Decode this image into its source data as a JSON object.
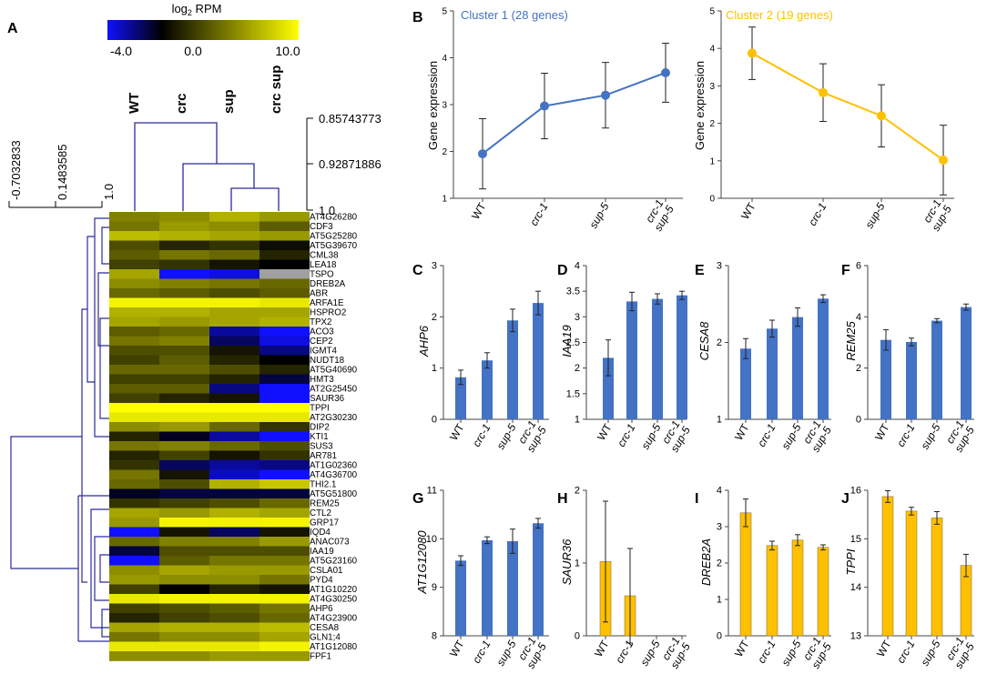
{
  "panel_letters": {
    "A": "A",
    "B": "B",
    "C": "C",
    "D": "D",
    "E": "E",
    "F": "F",
    "G": "G",
    "H": "H",
    "I": "I",
    "J": "J"
  },
  "heatmap": {
    "colorbar_title": "log",
    "colorbar_title_sub": "2",
    "colorbar_title_rest": " RPM",
    "colorbar_ticks": [
      "-4.0",
      "0.0",
      "10.0"
    ],
    "colorbar_colors": {
      "low": "#1010ff",
      "mid": "#000000",
      "high": "#ffff00"
    },
    "columns": [
      "WT",
      "crc",
      "sup",
      "crc sup"
    ],
    "col_dendro_scale": [
      "0.85743773",
      "0.92871886",
      "1.0"
    ],
    "row_dendro_scale": [
      "-0.7032833",
      "0.1483585",
      "1.0"
    ],
    "genes": [
      "AT4G26280",
      "CDF3",
      "AT5G25280",
      "AT5G39670",
      "CML38",
      "LEA18",
      "TSPO",
      "DREB2A",
      "ABR",
      "ARFA1E",
      "HSPRO2",
      "TPX2",
      "ACO3",
      "CEP2",
      "IGMT4",
      "NUDT18",
      "AT5G40690",
      "HMT3",
      "AT2G25450",
      "SAUR36",
      "TPPI",
      "AT2G30230",
      "DIP2",
      "KTI1",
      "SUS3",
      "AR781",
      "AT1G02360",
      "AT4G36700",
      "THI2.1",
      "AT5G51800",
      "REM25",
      "CTL2",
      "GRP17",
      "IQD4",
      "ANAC073",
      "IAA19",
      "AT5G23160",
      "CSLA01",
      "PYD4",
      "AT1G10220",
      "AT4G30250",
      "AHP6",
      "AT4G23900",
      "CESA8",
      "GLN1;4",
      "AT1G12080",
      "FPF1"
    ],
    "values": [
      [
        4.5,
        5.0,
        6.5,
        5.5
      ],
      [
        4.0,
        5.5,
        5.0,
        3.0
      ],
      [
        7.0,
        6.5,
        6.0,
        5.5
      ],
      [
        2.5,
        1.0,
        1.5,
        0.3
      ],
      [
        3.0,
        4.0,
        3.5,
        1.0
      ],
      [
        2.0,
        1.5,
        0.5,
        0.0
      ],
      [
        6.0,
        -4.0,
        -3.5,
        null
      ],
      [
        5.0,
        4.5,
        4.0,
        3.5
      ],
      [
        3.5,
        3.0,
        2.5,
        3.0
      ],
      [
        9.5,
        9.5,
        9.5,
        9.0
      ],
      [
        6.5,
        6.5,
        6.0,
        6.0
      ],
      [
        6.0,
        5.5,
        6.0,
        6.5
      ],
      [
        3.0,
        3.5,
        -2.5,
        -4.0
      ],
      [
        4.0,
        4.5,
        -1.5,
        -3.5
      ],
      [
        2.5,
        2.5,
        0.5,
        -2.0
      ],
      [
        2.0,
        3.0,
        1.0,
        0.0
      ],
      [
        3.5,
        3.5,
        2.5,
        1.0
      ],
      [
        2.0,
        2.0,
        1.0,
        -1.0
      ],
      [
        3.0,
        3.0,
        -2.0,
        -4.0
      ],
      [
        2.0,
        1.0,
        0.5,
        -4.0
      ],
      [
        10.0,
        10.0,
        10.0,
        10.0
      ],
      [
        9.0,
        9.0,
        9.0,
        9.0
      ],
      [
        5.0,
        5.5,
        3.5,
        1.5
      ],
      [
        1.0,
        -0.5,
        -2.5,
        -4.0
      ],
      [
        4.0,
        4.5,
        3.5,
        2.5
      ],
      [
        1.0,
        2.0,
        0.5,
        1.5
      ],
      [
        1.5,
        -1.5,
        -2.5,
        -2.0
      ],
      [
        4.0,
        0.5,
        -3.0,
        -4.0
      ],
      [
        3.5,
        2.5,
        6.5,
        7.5
      ],
      [
        -0.5,
        -1.0,
        -1.0,
        -1.0
      ],
      [
        1.5,
        2.0,
        2.5,
        3.5
      ],
      [
        6.0,
        5.5,
        6.5,
        6.0
      ],
      [
        5.5,
        9.5,
        9.5,
        9.5
      ],
      [
        -4.0,
        0.5,
        -1.5,
        0.5
      ],
      [
        3.5,
        4.5,
        4.5,
        5.5
      ],
      [
        -1.0,
        2.5,
        2.5,
        2.5
      ],
      [
        -4.0,
        3.0,
        4.0,
        4.0
      ],
      [
        5.0,
        6.0,
        5.5,
        5.5
      ],
      [
        5.5,
        5.0,
        5.0,
        4.0
      ],
      [
        2.0,
        0.0,
        1.0,
        0.5
      ],
      [
        9.0,
        9.5,
        9.5,
        9.5
      ],
      [
        2.0,
        2.5,
        3.0,
        4.0
      ],
      [
        1.0,
        2.0,
        2.5,
        3.5
      ],
      [
        6.0,
        6.5,
        6.5,
        7.0
      ],
      [
        4.0,
        5.0,
        5.0,
        6.0
      ],
      [
        9.0,
        9.0,
        9.0,
        9.5
      ],
      [
        5.0,
        5.0,
        5.5,
        5.5
      ]
    ]
  },
  "xcats": [
    "WT",
    "crc-1",
    "sup-5",
    "crc-1",
    "sup-5"
  ],
  "chart_data": [
    {
      "id": "B1",
      "type": "line",
      "title": "Cluster 1 (28 genes)",
      "ylabel": "Gene expression",
      "categories": [
        "WT",
        "crc-1",
        "sup-5",
        "crc-1 sup-5"
      ],
      "values": [
        1.95,
        2.97,
        3.2,
        3.68
      ],
      "errors": [
        0.75,
        0.7,
        0.7,
        0.63
      ],
      "ylim": [
        1,
        5
      ],
      "yticks": [
        "1",
        "2",
        "3",
        "4",
        "5"
      ],
      "color": "#4472c4"
    },
    {
      "id": "B2",
      "type": "line",
      "title": "Cluster 2 (19 genes)",
      "ylabel": "Gene expression",
      "categories": [
        "WT",
        "crc-1",
        "sup-5",
        "crc-1 sup-5"
      ],
      "values": [
        3.87,
        2.82,
        2.2,
        1.02
      ],
      "errors": [
        0.7,
        0.77,
        0.83,
        0.93
      ],
      "ylim": [
        0,
        5
      ],
      "yticks": [
        "0",
        "1",
        "2",
        "3",
        "4",
        "5"
      ],
      "color": "#ffc000"
    },
    {
      "id": "C",
      "type": "bar",
      "ylabel": "AHP6",
      "categories": [
        "WT",
        "crc-1",
        "sup-5",
        "crc-1 sup-5"
      ],
      "values": [
        0.82,
        1.15,
        1.93,
        2.27
      ],
      "errors": [
        0.14,
        0.15,
        0.22,
        0.23
      ],
      "ylim": [
        0,
        3
      ],
      "yticks": [
        "0",
        "1",
        "2",
        "3"
      ],
      "color": "#4472c4"
    },
    {
      "id": "D",
      "type": "bar",
      "ylabel": "IAA19",
      "categories": [
        "WT",
        "crc-1",
        "sup-5",
        "crc-1 sup-5"
      ],
      "values": [
        2.2,
        3.3,
        3.35,
        3.42
      ],
      "errors": [
        0.35,
        0.18,
        0.1,
        0.08
      ],
      "ylim": [
        1,
        4
      ],
      "yticks": [
        "1",
        "1.5",
        "2",
        "2.5",
        "3",
        "3.5",
        "4"
      ],
      "color": "#4472c4"
    },
    {
      "id": "E",
      "type": "bar",
      "ylabel": "CESA8",
      "categories": [
        "WT",
        "crc-1",
        "sup-5",
        "crc-1 sup-5"
      ],
      "values": [
        1.92,
        2.18,
        2.33,
        2.57
      ],
      "errors": [
        0.13,
        0.11,
        0.12,
        0.05
      ],
      "ylim": [
        1,
        3
      ],
      "yticks": [
        "1",
        "2",
        "3"
      ],
      "color": "#4472c4"
    },
    {
      "id": "F",
      "type": "bar",
      "ylabel": "REM25",
      "categories": [
        "WT",
        "crc-1",
        "sup-5",
        "crc-1 sup-5"
      ],
      "values": [
        3.1,
        3.02,
        3.85,
        4.38
      ],
      "errors": [
        0.4,
        0.15,
        0.08,
        0.12
      ],
      "ylim": [
        0,
        6
      ],
      "yticks": [
        "0",
        "2",
        "4",
        "6"
      ],
      "color": "#4472c4"
    },
    {
      "id": "G",
      "type": "bar",
      "ylabel": "AT1G12080",
      "categories": [
        "WT",
        "crc-1",
        "sup-5",
        "crc-1 sup-5"
      ],
      "values": [
        9.55,
        9.97,
        9.95,
        10.32
      ],
      "errors": [
        0.1,
        0.07,
        0.25,
        0.1
      ],
      "ylim": [
        8,
        11
      ],
      "yticks": [
        "8",
        "9",
        "10",
        "11"
      ],
      "color": "#4472c4"
    },
    {
      "id": "H",
      "type": "bar",
      "ylabel": "SAUR36",
      "categories": [
        "WT",
        "crc-1",
        "sup-5",
        "crc-1 sup-5"
      ],
      "values": [
        1.02,
        0.55,
        0,
        0
      ],
      "errors": [
        0.83,
        0.65,
        0,
        0
      ],
      "ylim": [
        0,
        2
      ],
      "yticks": [
        "0",
        "1",
        "2"
      ],
      "color": "#ffc000"
    },
    {
      "id": "I",
      "type": "bar",
      "ylabel": "DREB2A",
      "categories": [
        "WT",
        "crc-1",
        "sup-5",
        "crc-1 sup-5"
      ],
      "values": [
        3.38,
        2.48,
        2.63,
        2.43
      ],
      "errors": [
        0.38,
        0.12,
        0.15,
        0.07
      ],
      "ylim": [
        0,
        4
      ],
      "yticks": [
        "0",
        "1",
        "2",
        "3",
        "4"
      ],
      "color": "#ffc000"
    },
    {
      "id": "J",
      "type": "bar",
      "ylabel": "TPPI",
      "categories": [
        "WT",
        "crc-1",
        "sup-5",
        "crc-1 sup-5"
      ],
      "values": [
        15.87,
        15.57,
        15.43,
        14.45
      ],
      "errors": [
        0.12,
        0.08,
        0.13,
        0.23
      ],
      "ylim": [
        13,
        16
      ],
      "yticks": [
        "13",
        "14",
        "15",
        "16"
      ],
      "color": "#ffc000"
    }
  ]
}
